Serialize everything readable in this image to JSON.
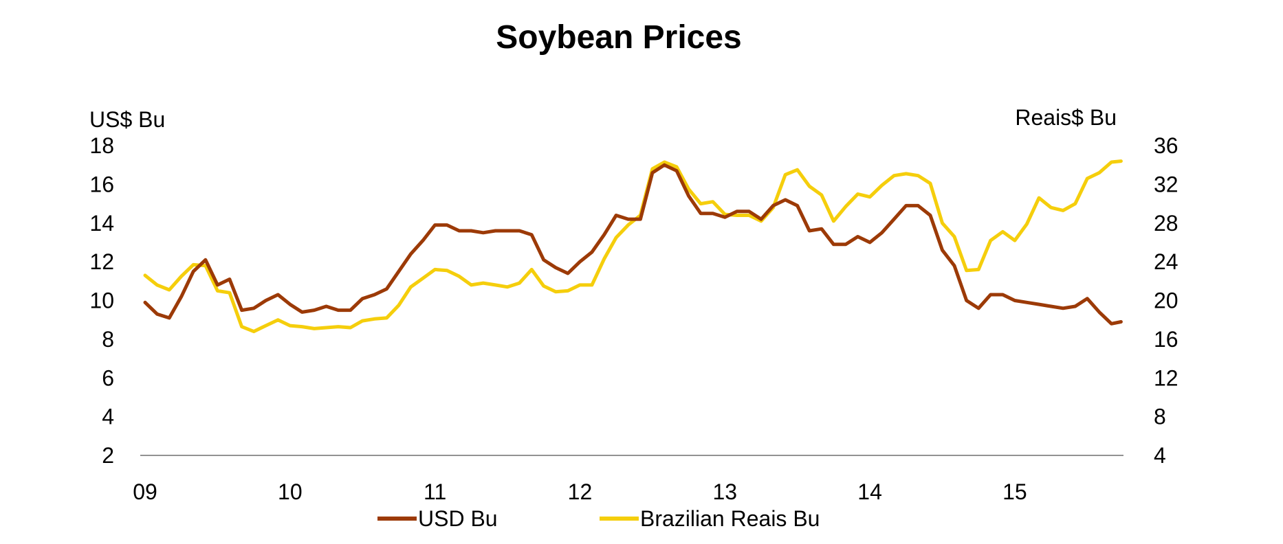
{
  "chart_data": {
    "type": "line",
    "title": "Soybean Prices",
    "ylabel_left": "US$ Bu",
    "ylabel_right": "Reais$ Bu",
    "x_tick_labels": [
      "09",
      "10",
      "11",
      "12",
      "13",
      "14",
      "15"
    ],
    "x_tick_values": [
      2009,
      2010,
      2011,
      2012,
      2013,
      2014,
      2015
    ],
    "x_range": [
      2009,
      2015.75
    ],
    "ylim_left": [
      2,
      18
    ],
    "yticks_left": [
      2,
      4,
      6,
      8,
      10,
      12,
      14,
      16,
      18
    ],
    "ylim_right": [
      4,
      36
    ],
    "yticks_right": [
      4,
      8,
      12,
      16,
      20,
      24,
      28,
      32,
      36
    ],
    "grid": false,
    "legend_position": "bottom-center",
    "series": [
      {
        "name": "USD Bu",
        "axis": "left",
        "color": "#9C3A07",
        "points": [
          [
            2009.0,
            9.9
          ],
          [
            2009.083,
            9.3
          ],
          [
            2009.167,
            9.1
          ],
          [
            2009.25,
            10.2
          ],
          [
            2009.333,
            11.5
          ],
          [
            2009.417,
            12.1
          ],
          [
            2009.5,
            10.8
          ],
          [
            2009.583,
            11.1
          ],
          [
            2009.667,
            9.5
          ],
          [
            2009.75,
            9.6
          ],
          [
            2009.833,
            10.0
          ],
          [
            2009.917,
            10.3
          ],
          [
            2010.0,
            9.8
          ],
          [
            2010.083,
            9.4
          ],
          [
            2010.167,
            9.5
          ],
          [
            2010.25,
            9.7
          ],
          [
            2010.333,
            9.5
          ],
          [
            2010.417,
            9.5
          ],
          [
            2010.5,
            10.1
          ],
          [
            2010.583,
            10.3
          ],
          [
            2010.667,
            10.6
          ],
          [
            2010.75,
            11.5
          ],
          [
            2010.833,
            12.4
          ],
          [
            2010.917,
            13.1
          ],
          [
            2011.0,
            13.9
          ],
          [
            2011.083,
            13.9
          ],
          [
            2011.167,
            13.6
          ],
          [
            2011.25,
            13.6
          ],
          [
            2011.333,
            13.5
          ],
          [
            2011.417,
            13.6
          ],
          [
            2011.5,
            13.6
          ],
          [
            2011.583,
            13.6
          ],
          [
            2011.667,
            13.4
          ],
          [
            2011.75,
            12.1
          ],
          [
            2011.833,
            11.7
          ],
          [
            2011.917,
            11.4
          ],
          [
            2012.0,
            12.0
          ],
          [
            2012.083,
            12.5
          ],
          [
            2012.167,
            13.4
          ],
          [
            2012.25,
            14.4
          ],
          [
            2012.333,
            14.2
          ],
          [
            2012.417,
            14.2
          ],
          [
            2012.5,
            16.6
          ],
          [
            2012.583,
            17.0
          ],
          [
            2012.667,
            16.7
          ],
          [
            2012.75,
            15.4
          ],
          [
            2012.833,
            14.5
          ],
          [
            2012.917,
            14.5
          ],
          [
            2013.0,
            14.3
          ],
          [
            2013.083,
            14.6
          ],
          [
            2013.167,
            14.6
          ],
          [
            2013.25,
            14.2
          ],
          [
            2013.333,
            14.9
          ],
          [
            2013.417,
            15.2
          ],
          [
            2013.5,
            14.9
          ],
          [
            2013.583,
            13.6
          ],
          [
            2013.667,
            13.7
          ],
          [
            2013.75,
            12.9
          ],
          [
            2013.833,
            12.9
          ],
          [
            2013.917,
            13.3
          ],
          [
            2014.0,
            13.0
          ],
          [
            2014.083,
            13.5
          ],
          [
            2014.167,
            14.2
          ],
          [
            2014.25,
            14.9
          ],
          [
            2014.333,
            14.9
          ],
          [
            2014.417,
            14.4
          ],
          [
            2014.5,
            12.6
          ],
          [
            2014.583,
            11.8
          ],
          [
            2014.667,
            10.0
          ],
          [
            2014.75,
            9.6
          ],
          [
            2014.833,
            10.3
          ],
          [
            2014.917,
            10.3
          ],
          [
            2015.0,
            10.0
          ],
          [
            2015.083,
            9.9
          ],
          [
            2015.167,
            9.8
          ],
          [
            2015.25,
            9.7
          ],
          [
            2015.333,
            9.6
          ],
          [
            2015.417,
            9.7
          ],
          [
            2015.5,
            10.1
          ],
          [
            2015.583,
            9.4
          ],
          [
            2015.667,
            8.8
          ],
          [
            2015.733,
            8.9
          ]
        ]
      },
      {
        "name": "Brazilian Reais Bu",
        "axis": "right",
        "color": "#F5CE0C",
        "points": [
          [
            2009.0,
            22.6
          ],
          [
            2009.083,
            21.6
          ],
          [
            2009.167,
            21.1
          ],
          [
            2009.25,
            22.5
          ],
          [
            2009.333,
            23.7
          ],
          [
            2009.417,
            23.6
          ],
          [
            2009.5,
            21.0
          ],
          [
            2009.583,
            20.8
          ],
          [
            2009.667,
            17.3
          ],
          [
            2009.75,
            16.8
          ],
          [
            2009.833,
            17.4
          ],
          [
            2009.917,
            18.0
          ],
          [
            2010.0,
            17.4
          ],
          [
            2010.083,
            17.3
          ],
          [
            2010.167,
            17.1
          ],
          [
            2010.25,
            17.2
          ],
          [
            2010.333,
            17.3
          ],
          [
            2010.417,
            17.2
          ],
          [
            2010.5,
            17.9
          ],
          [
            2010.583,
            18.1
          ],
          [
            2010.667,
            18.2
          ],
          [
            2010.75,
            19.5
          ],
          [
            2010.833,
            21.4
          ],
          [
            2010.917,
            22.3
          ],
          [
            2011.0,
            23.2
          ],
          [
            2011.083,
            23.1
          ],
          [
            2011.167,
            22.5
          ],
          [
            2011.25,
            21.6
          ],
          [
            2011.333,
            21.8
          ],
          [
            2011.417,
            21.6
          ],
          [
            2011.5,
            21.4
          ],
          [
            2011.583,
            21.8
          ],
          [
            2011.667,
            23.2
          ],
          [
            2011.75,
            21.5
          ],
          [
            2011.833,
            20.9
          ],
          [
            2011.917,
            21.0
          ],
          [
            2012.0,
            21.6
          ],
          [
            2012.083,
            21.6
          ],
          [
            2012.167,
            24.3
          ],
          [
            2012.25,
            26.5
          ],
          [
            2012.333,
            27.8
          ],
          [
            2012.417,
            28.8
          ],
          [
            2012.5,
            33.6
          ],
          [
            2012.583,
            34.3
          ],
          [
            2012.667,
            33.8
          ],
          [
            2012.75,
            31.5
          ],
          [
            2012.833,
            30.0
          ],
          [
            2012.917,
            30.2
          ],
          [
            2013.0,
            28.9
          ],
          [
            2013.083,
            28.8
          ],
          [
            2013.167,
            28.8
          ],
          [
            2013.25,
            28.2
          ],
          [
            2013.333,
            29.6
          ],
          [
            2013.417,
            33.0
          ],
          [
            2013.5,
            33.5
          ],
          [
            2013.583,
            31.8
          ],
          [
            2013.667,
            30.9
          ],
          [
            2013.75,
            28.2
          ],
          [
            2013.833,
            29.7
          ],
          [
            2013.917,
            31.0
          ],
          [
            2014.0,
            30.7
          ],
          [
            2014.083,
            31.9
          ],
          [
            2014.167,
            32.9
          ],
          [
            2014.25,
            33.1
          ],
          [
            2014.333,
            32.9
          ],
          [
            2014.417,
            32.1
          ],
          [
            2014.5,
            28.0
          ],
          [
            2014.583,
            26.6
          ],
          [
            2014.667,
            23.1
          ],
          [
            2014.75,
            23.2
          ],
          [
            2014.833,
            26.2
          ],
          [
            2014.917,
            27.1
          ],
          [
            2015.0,
            26.2
          ],
          [
            2015.083,
            27.9
          ],
          [
            2015.167,
            30.6
          ],
          [
            2015.25,
            29.6
          ],
          [
            2015.333,
            29.3
          ],
          [
            2015.417,
            30.0
          ],
          [
            2015.5,
            32.6
          ],
          [
            2015.583,
            33.2
          ],
          [
            2015.667,
            34.3
          ],
          [
            2015.733,
            34.4
          ]
        ]
      }
    ]
  }
}
